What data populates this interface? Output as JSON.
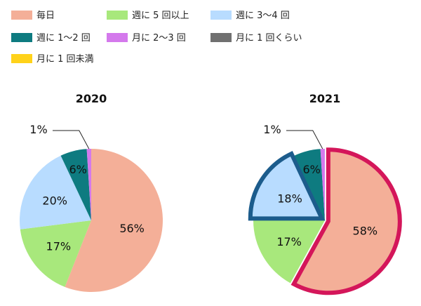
{
  "chart_data": {
    "type": "pie",
    "legend": {
      "position": "top",
      "entries": [
        {
          "label": "毎日",
          "color": "#f4af98"
        },
        {
          "label": "週に 5 回以上",
          "color": "#a8e87c"
        },
        {
          "label": "週に 3〜4 回",
          "color": "#b8dcff"
        },
        {
          "label": "週に 1〜2 回",
          "color": "#0e7b80"
        },
        {
          "label": "月に 2〜3 回",
          "color": "#d479ec"
        },
        {
          "label": "月に 1 回くらい",
          "color": "#707070"
        },
        {
          "label": "月に 1 回未満",
          "color": "#ffd21a"
        }
      ]
    },
    "charts": [
      {
        "title": "2020",
        "values": [
          56,
          17,
          20,
          6,
          1
        ],
        "labels": [
          "56%",
          "17%",
          "20%",
          "6%",
          "1%"
        ]
      },
      {
        "title": "2021",
        "values": [
          58,
          17,
          18,
          6,
          1
        ],
        "labels": [
          "58%",
          "17%",
          "18%",
          "6%",
          "1%"
        ],
        "highlight": [
          {
            "index": 0,
            "color": "#d4165a"
          },
          {
            "index": 2,
            "color": "#1c5c8c"
          }
        ]
      }
    ]
  }
}
